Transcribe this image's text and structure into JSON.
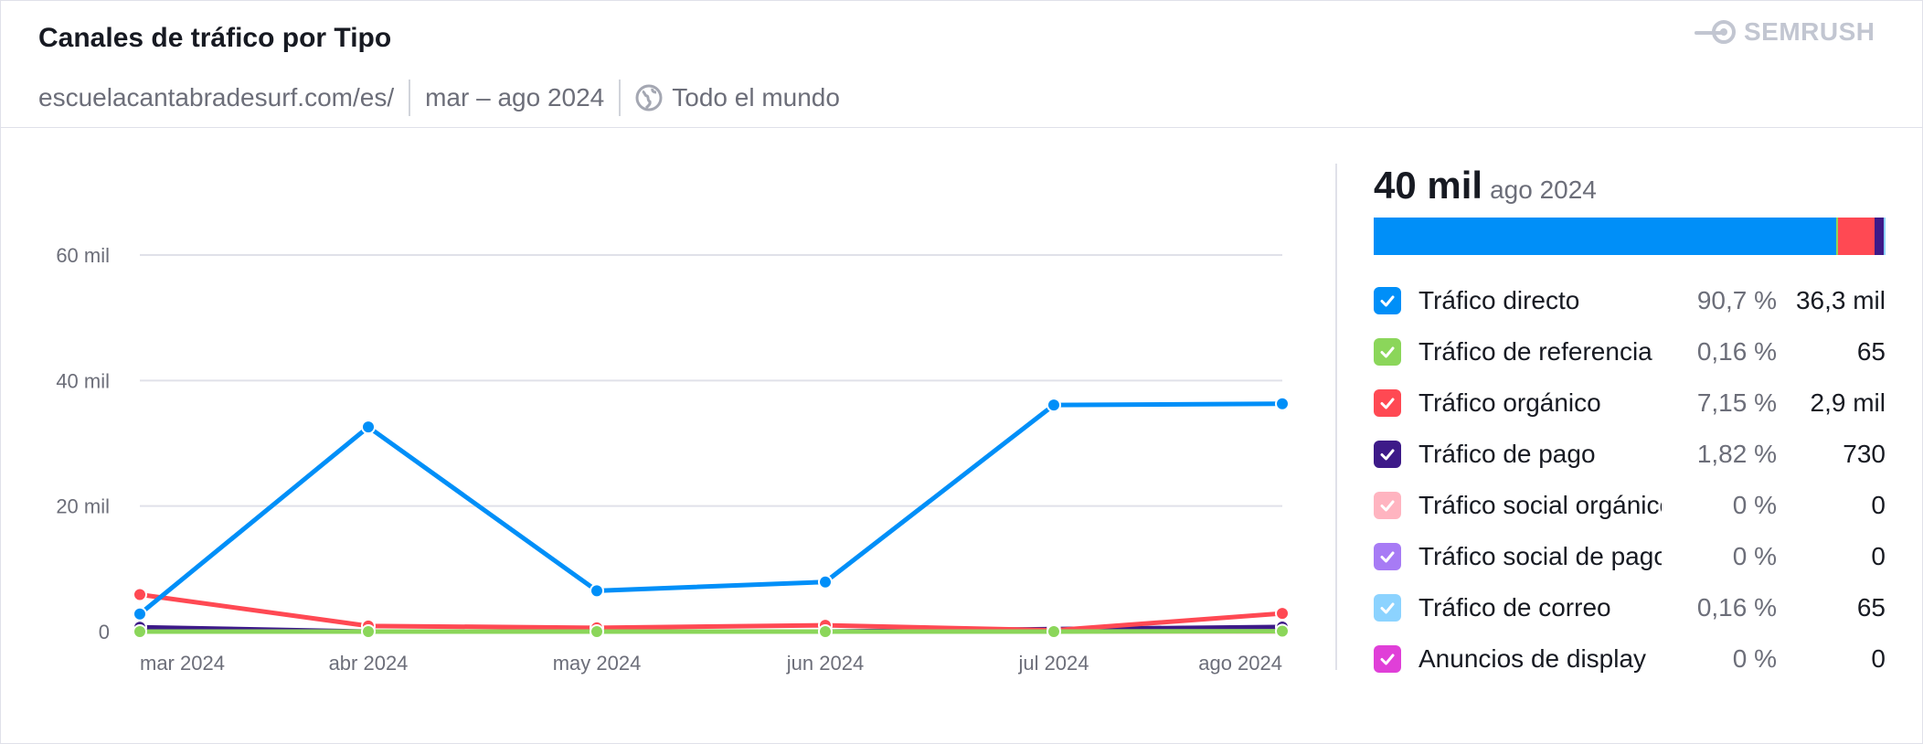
{
  "header": {
    "title": "Canales de tráfico por Tipo",
    "domain": "escuelacantabradesurf.com/es/",
    "date_range": "mar – ago 2024",
    "region": "Todo el mundo",
    "brand": "SEMRUSH",
    "region_icon": "globe-icon",
    "brand_icon": "semrush-logo-icon"
  },
  "summary": {
    "total": "40 mil",
    "date": "ago 2024"
  },
  "legend": [
    {
      "name": "Tráfico directo",
      "pct": "90,7 %",
      "value": "36,3 mil",
      "color": "#008ff8",
      "share": 90.7
    },
    {
      "name": "Tráfico de referencia",
      "pct": "0,16 %",
      "value": "65",
      "color": "#8bd65a",
      "share": 0.16
    },
    {
      "name": "Tráfico orgánico",
      "pct": "7,15 %",
      "value": "2,9 mil",
      "color": "#ff4953",
      "share": 7.15
    },
    {
      "name": "Tráfico de pago",
      "pct": "1,82 %",
      "value": "730",
      "color": "#3d1a88",
      "share": 1.82
    },
    {
      "name": "Tráfico social orgánico",
      "pct": "0 %",
      "value": "0",
      "color": "#ffb4c0",
      "share": 0
    },
    {
      "name": "Tráfico social de pago",
      "pct": "0 %",
      "value": "0",
      "color": "#a77bf5",
      "share": 0
    },
    {
      "name": "Tráfico de correo",
      "pct": "0,16 %",
      "value": "65",
      "color": "#8cd3ff",
      "share": 0.16
    },
    {
      "name": "Anuncios de display",
      "pct": "0 %",
      "value": "0",
      "color": "#e03fd8",
      "share": 0
    }
  ],
  "chart_data": {
    "type": "line",
    "x": [
      "mar 2024",
      "abr 2024",
      "may 2024",
      "jun 2024",
      "jul 2024",
      "ago 2024"
    ],
    "y_ticks": [
      "0",
      "20 mil",
      "40 mil",
      "60 mil"
    ],
    "ylim": [
      0,
      60000
    ],
    "grid": true,
    "series": [
      {
        "name": "Tráfico directo",
        "color": "#008ff8",
        "values": [
          2800,
          32600,
          6500,
          7900,
          36100,
          36300
        ]
      },
      {
        "name": "Tráfico de referencia",
        "color": "#8bd65a",
        "values": [
          0,
          0,
          0,
          0,
          0,
          65
        ]
      },
      {
        "name": "Tráfico orgánico",
        "color": "#ff4953",
        "values": [
          5900,
          900,
          600,
          1000,
          200,
          2900
        ]
      },
      {
        "name": "Tráfico de pago",
        "color": "#3d1a88",
        "values": [
          700,
          0,
          0,
          0,
          400,
          730
        ]
      },
      {
        "name": "Tráfico social orgánico",
        "color": "#ffb4c0",
        "values": [
          0,
          0,
          0,
          0,
          0,
          0
        ]
      },
      {
        "name": "Tráfico social de pago",
        "color": "#a77bf5",
        "values": [
          0,
          0,
          0,
          0,
          0,
          0
        ]
      },
      {
        "name": "Tráfico de correo",
        "color": "#8cd3ff",
        "values": [
          0,
          0,
          0,
          0,
          0,
          65
        ]
      },
      {
        "name": "Anuncios de display",
        "color": "#e03fd8",
        "values": [
          0,
          0,
          0,
          0,
          0,
          0
        ]
      }
    ]
  }
}
